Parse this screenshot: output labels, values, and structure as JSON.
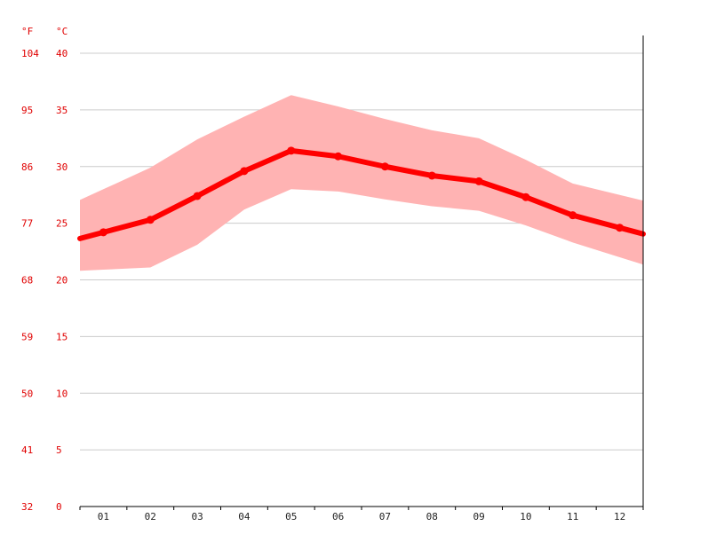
{
  "chart_data": {
    "type": "area",
    "categories": [
      "01",
      "02",
      "03",
      "04",
      "05",
      "06",
      "07",
      "08",
      "09",
      "10",
      "11",
      "12"
    ],
    "units": {
      "fahrenheit": "°F",
      "celsius": "°C"
    },
    "y_ticks_c": [
      "0",
      "5",
      "10",
      "15",
      "20",
      "25",
      "30",
      "35",
      "40"
    ],
    "y_ticks_f": [
      "32",
      "41",
      "50",
      "59",
      "68",
      "77",
      "86",
      "95",
      "104"
    ],
    "ylim": [
      0,
      40
    ],
    "grid": true,
    "series": [
      {
        "values": [
          24.2,
          25.3,
          27.4,
          29.6,
          31.4,
          30.9,
          30.0,
          29.2,
          28.7,
          27.3,
          25.7,
          24.6
        ]
      }
    ],
    "range_max": [
      28.0,
      29.9,
      32.4,
      34.4,
      36.3,
      35.3,
      34.2,
      33.2,
      32.5,
      30.6,
      28.5,
      27.5
    ],
    "range_min": [
      20.9,
      21.1,
      23.1,
      26.2,
      28.0,
      27.8,
      27.1,
      26.5,
      26.1,
      24.8,
      23.3,
      22.0
    ],
    "colors": {
      "line": "#ff0000",
      "band": "#ffb3b3",
      "ticks": "#e00000"
    }
  }
}
